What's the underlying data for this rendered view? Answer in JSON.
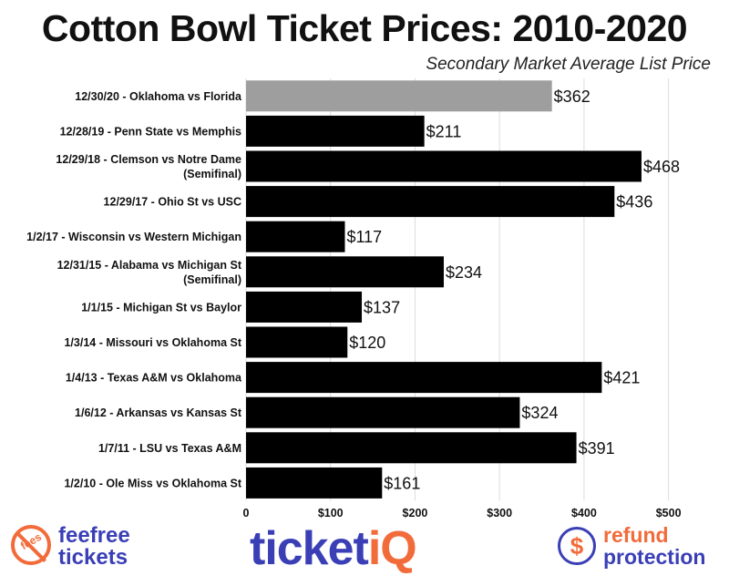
{
  "chart_data": {
    "type": "bar",
    "orientation": "horizontal",
    "title": "Cotton Bowl Ticket Prices: 2010-2020",
    "subtitle": "Secondary Market Average List Price",
    "xlim": [
      0,
      550
    ],
    "x_ticks": [
      0,
      100,
      200,
      300,
      400,
      500
    ],
    "x_tick_labels": [
      "0",
      "$100",
      "$200",
      "$300",
      "$400",
      "$500"
    ],
    "grid": true,
    "categories": [
      [
        "12/30/20 - Oklahoma vs Florida"
      ],
      [
        "12/28/19 - Penn State vs Memphis"
      ],
      [
        "12/29/18 - Clemson vs Notre Dame",
        "(Semifinal)"
      ],
      [
        "12/29/17 - Ohio St vs USC"
      ],
      [
        "1/2/17 - Wisconsin vs Western Michigan"
      ],
      [
        "12/31/15 - Alabama vs Michigan St",
        "(Semifinal)"
      ],
      [
        "1/1/15 - Michigan St vs Baylor"
      ],
      [
        "1/3/14 - Missouri vs Oklahoma St"
      ],
      [
        "1/4/13 - Texas A&M vs Oklahoma"
      ],
      [
        "1/6/12 - Arkansas vs Kansas St"
      ],
      [
        "1/7/11 - LSU vs Texas A&M"
      ],
      [
        "1/2/10 - Ole Miss vs Oklahoma St"
      ]
    ],
    "values": [
      362,
      211,
      468,
      436,
      117,
      234,
      137,
      120,
      421,
      324,
      391,
      161
    ],
    "value_labels": [
      "$362",
      "$211",
      "$468",
      "$436",
      "$117",
      "$234",
      "$137",
      "$120",
      "$421",
      "$324",
      "$391",
      "$161"
    ],
    "bar_colors": [
      "#9e9e9e",
      "#000000",
      "#000000",
      "#000000",
      "#000000",
      "#000000",
      "#000000",
      "#000000",
      "#000000",
      "#000000",
      "#000000",
      "#000000"
    ],
    "grid_color": "#dddddd"
  },
  "logos": {
    "feefree": {
      "badge": "fees",
      "line1": "feefree",
      "line2": "tickets"
    },
    "ticketiq": {
      "main": "ticket",
      "accent": "iQ"
    },
    "refund": {
      "symbol": "$",
      "line1": "refund",
      "line2": "protection"
    }
  },
  "brand_colors": {
    "blue": "#3b3fb6",
    "orange": "#f26b3a"
  }
}
